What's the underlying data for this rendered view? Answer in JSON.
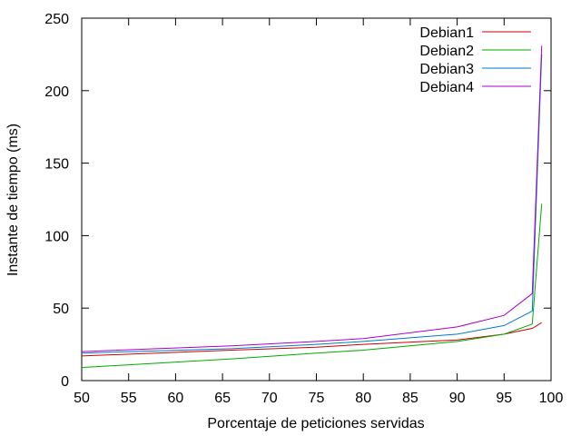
{
  "chart_data": {
    "type": "line",
    "xlabel": "Porcentaje de peticiones servidas",
    "ylabel": "Instante de tiempo (ms)",
    "xlim": [
      50,
      100
    ],
    "ylim": [
      0,
      250
    ],
    "xticks": [
      50,
      55,
      60,
      65,
      70,
      75,
      80,
      85,
      90,
      95,
      100
    ],
    "yticks": [
      0,
      50,
      100,
      150,
      200,
      250
    ],
    "grid": false,
    "legend_position": "top-right",
    "x": [
      50,
      66,
      75,
      80,
      90,
      95,
      98,
      99
    ],
    "series": [
      {
        "name": "Debian1",
        "color": "#cc0000",
        "values": [
          17,
          21,
          23,
          25,
          28,
          32,
          36,
          40
        ]
      },
      {
        "name": "Debian2",
        "color": "#00aa00",
        "values": [
          9,
          15,
          19,
          21,
          27,
          32,
          39,
          122
        ]
      },
      {
        "name": "Debian3",
        "color": "#0077cc",
        "values": [
          19,
          22,
          25,
          27,
          32,
          38,
          48,
          225
        ]
      },
      {
        "name": "Debian4",
        "color": "#aa00cc",
        "values": [
          20,
          24,
          27,
          29,
          37,
          45,
          60,
          231
        ]
      }
    ]
  }
}
